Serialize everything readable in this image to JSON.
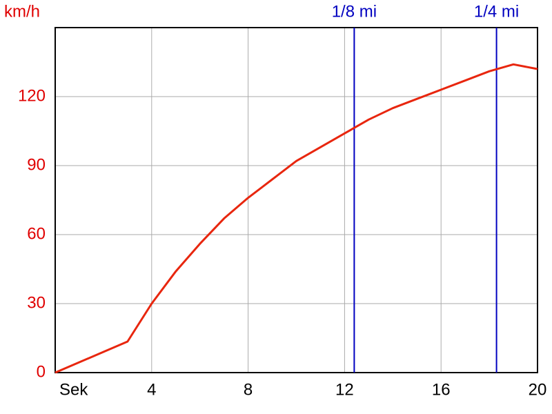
{
  "chart_data": {
    "type": "line",
    "y_label": "km/h",
    "x_label": "Sek",
    "x": [
      0,
      3,
      4,
      5,
      6,
      7,
      8,
      9,
      10,
      11,
      12,
      13,
      14,
      15,
      16,
      17,
      18,
      19,
      20
    ],
    "series": [
      {
        "color": "#e8260e",
        "values": [
          0,
          13.5,
          30,
          44,
          56,
          67,
          76,
          84,
          92,
          98,
          104,
          110,
          115,
          119,
          123,
          127,
          131,
          134,
          132
        ]
      }
    ],
    "xlim": [
      0,
      20
    ],
    "xticks": [
      4,
      8,
      12,
      16,
      20
    ],
    "ylim": [
      0,
      150
    ],
    "yticks": [
      0,
      30,
      60,
      90,
      120
    ],
    "grid": true,
    "markers": [
      {
        "label": "1/8 mi",
        "x": 12.4,
        "color": "#0000c0"
      },
      {
        "label": "1/4 mi",
        "x": 18.3,
        "color": "#0000c0"
      }
    ]
  }
}
